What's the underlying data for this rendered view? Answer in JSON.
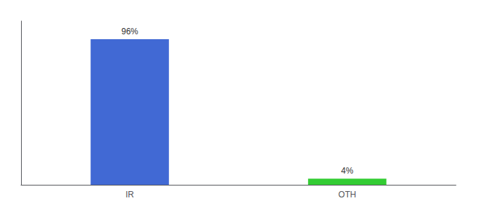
{
  "chart_data": {
    "type": "bar",
    "categories": [
      "IR",
      "OTH"
    ],
    "values": [
      96,
      4
    ],
    "value_labels": [
      "96%",
      "4%"
    ],
    "colors": [
      "#4169d4",
      "#33cc33"
    ],
    "ylim": [
      0,
      108
    ],
    "yticks": [],
    "tick_labels": "x",
    "grid": false,
    "data_labels": true
  }
}
